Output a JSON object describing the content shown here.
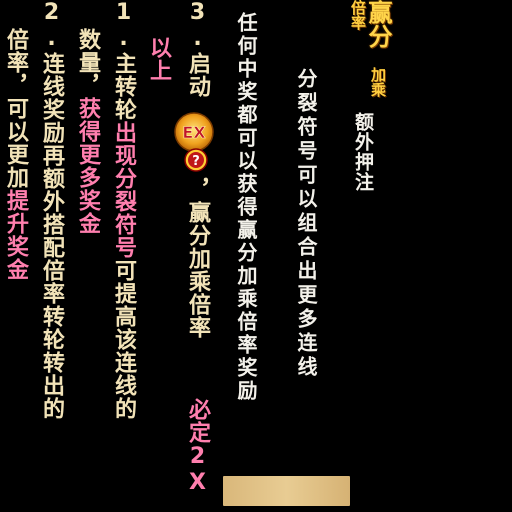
{
  "logo": {
    "main": "赢分",
    "sub": "加乘倍率"
  },
  "extra_bet_label": "额外押注",
  "line1": "分裂符号可以组合出更多连线",
  "line2": "任何中奖都可以获得赢分加乘倍率奖励",
  "item3": {
    "prefix": "3.启动",
    "after_badge": "，赢分加乘倍率",
    "highlight": "必定2X",
    "tail": "以上"
  },
  "badge": {
    "text": "EX",
    "mark": "?"
  },
  "item1": {
    "line_a_prefix": "1.主转轮",
    "line_a_highlight": "出现分裂符号",
    "line_a_suffix": "可提高该连线的",
    "line_b_prefix": "数量，",
    "line_b_highlight": "获得更多奖金"
  },
  "item2": {
    "line_a": "2.连线奖励再额外搭配倍率转轮转出的",
    "line_b_prefix": "倍率，可以更加",
    "line_b_highlight": "提升奖金"
  },
  "colors": {
    "white": "#f3f1ea",
    "cream": "#f2e3b8",
    "pink": "#ff7fae",
    "gold": "#f4c046",
    "background": "#000000",
    "bar": "#e0c185"
  }
}
